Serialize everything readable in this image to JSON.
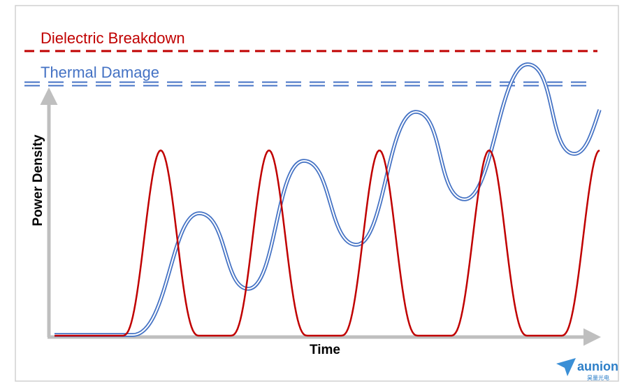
{
  "labels": {
    "dielectric": "Dielectric Breakdown",
    "thermal": "Thermal Damage",
    "y_axis": "Power Density",
    "x_axis": "Time"
  },
  "logo": {
    "name": "aunion",
    "subtitle": "昊量光电"
  }
}
